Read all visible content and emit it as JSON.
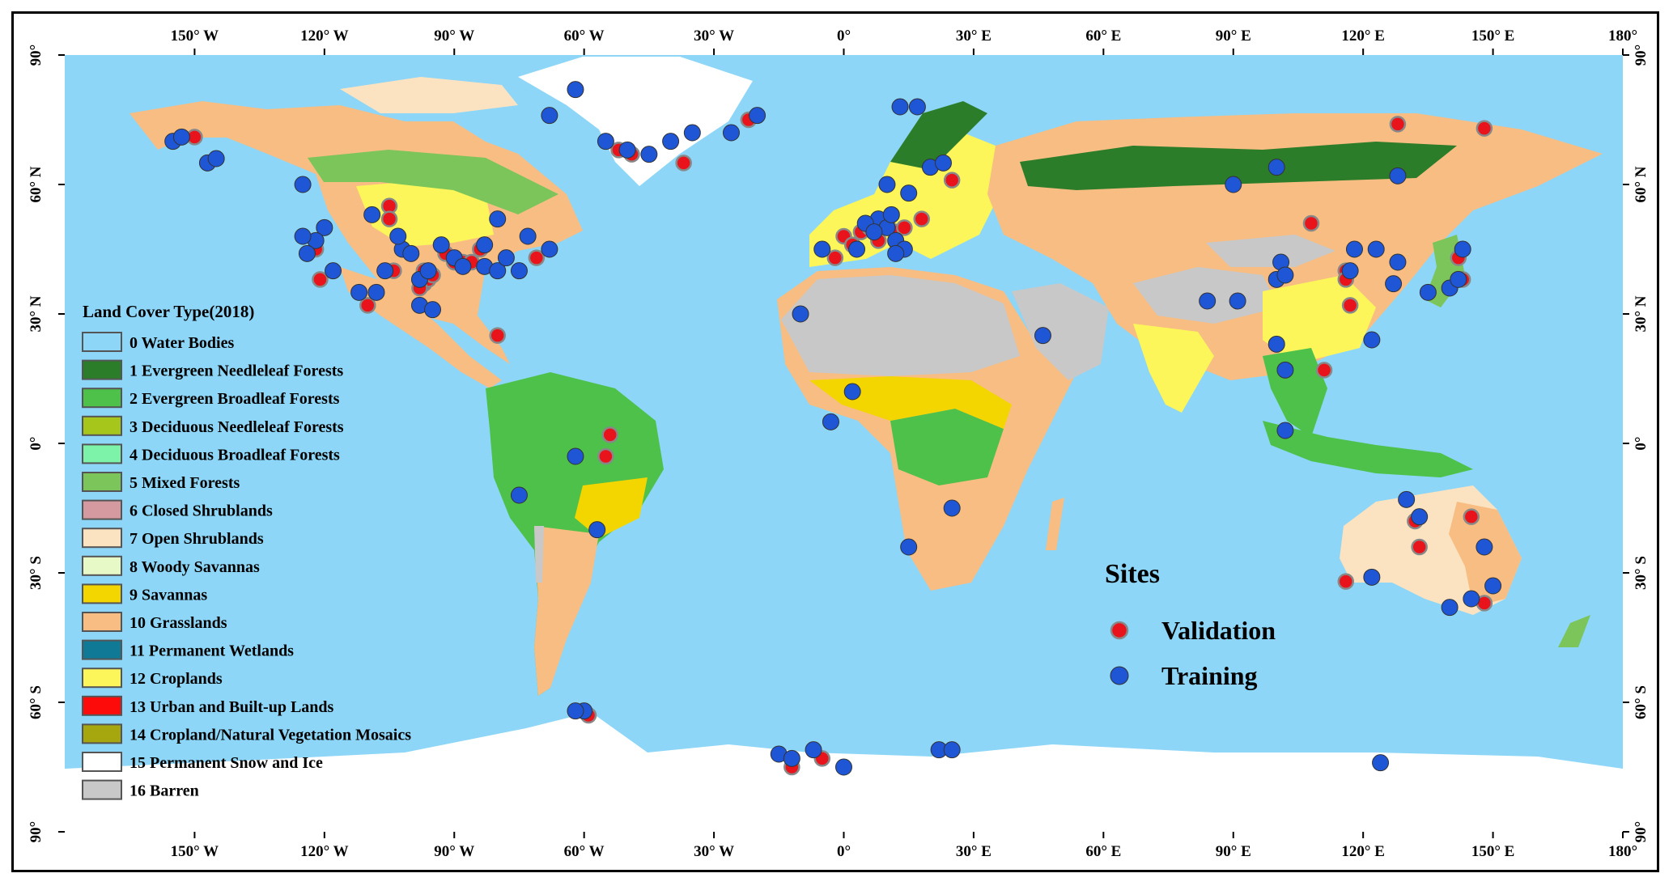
{
  "map": {
    "projection": "equirectangular",
    "lon_range": [
      -180,
      180
    ],
    "lat_range": [
      -90,
      90
    ],
    "colors": {
      "ocean": "#8dd6f7",
      "snow": "#ffffff",
      "barren": "#c8c8c8",
      "grassland": "#f8bd82",
      "open_shrub": "#fbe3c1",
      "ebf": "#4dc14a",
      "enf": "#2c7d2a",
      "savanna": "#f3d600",
      "cropland": "#fcf65a",
      "mixed": "#7cc55b"
    },
    "top_ticks": [
      "150° W",
      "120° W",
      "90° W",
      "60° W",
      "30° W",
      "0°",
      "30° E",
      "60° E",
      "90° E",
      "120° E",
      "150° E",
      "180°"
    ],
    "top_ticks_lon": [
      -150,
      -120,
      -90,
      -60,
      -30,
      0,
      30,
      60,
      90,
      120,
      150,
      180
    ],
    "bottom_ticks": [
      "150° W",
      "120° W",
      "90° W",
      "60° W",
      "30° W",
      "0°",
      "30° E",
      "60° E",
      "90° E",
      "120° E",
      "150° E",
      "180°"
    ],
    "left_ticks": [
      "90°",
      "60° N",
      "30° N",
      "0°",
      "30° S",
      "60° S",
      "90°"
    ],
    "right_ticks": [
      "90°",
      "60° N",
      "30° N",
      "0°",
      "30° S",
      "60° S",
      "90°"
    ],
    "lat_ticks": [
      90,
      60,
      30,
      0,
      -30,
      -60,
      -90
    ]
  },
  "legend": {
    "title": "Land Cover Type(2018)",
    "items": [
      {
        "label": "0 Water Bodies",
        "color": "#8dd6f7"
      },
      {
        "label": "1 Evergreen Needleleaf Forests",
        "color": "#2c7d2a"
      },
      {
        "label": "2 Evergreen Broadleaf Forests",
        "color": "#4dc14a"
      },
      {
        "label": "3 Deciduous Needleleaf Forests",
        "color": "#a6c61c"
      },
      {
        "label": "4 Deciduous Broadleaf Forests",
        "color": "#7df2a9"
      },
      {
        "label": "5 Mixed Forests",
        "color": "#7cc55b"
      },
      {
        "label": "6 Closed Shrublands",
        "color": "#d59aa0"
      },
      {
        "label": "7 Open Shrublands",
        "color": "#fbe3c1"
      },
      {
        "label": "8 Woody Savannas",
        "color": "#e6f9c6"
      },
      {
        "label": "9 Savannas",
        "color": "#f3d600"
      },
      {
        "label": "10 Grasslands",
        "color": "#f8bd82"
      },
      {
        "label": "11 Permanent Wetlands",
        "color": "#107a96"
      },
      {
        "label": "12 Croplands",
        "color": "#fcf65a"
      },
      {
        "label": "13 Urban and Built-up Lands",
        "color": "#fd0a0a"
      },
      {
        "label": "14 Cropland/Natural Vegetation Mosaics",
        "color": "#a6a60e"
      },
      {
        "label": "15 Permanent Snow and Ice",
        "color": "#ffffff"
      },
      {
        "label": "16 Barren",
        "color": "#c8c8c8"
      }
    ]
  },
  "sites": {
    "title": "Sites",
    "validation_label": "Validation",
    "training_label": "Training",
    "validation_color": "#e8131b",
    "training_color": "#1e56d6",
    "validation": [
      [
        -147,
        65
      ],
      [
        -150,
        71
      ],
      [
        -105,
        55
      ],
      [
        -104,
        40
      ],
      [
        -97,
        37
      ],
      [
        -96,
        38
      ],
      [
        -98,
        36
      ],
      [
        -95,
        39
      ],
      [
        -97,
        40
      ],
      [
        -92,
        44
      ],
      [
        -90,
        42
      ],
      [
        -88,
        42
      ],
      [
        -86,
        42
      ],
      [
        -84,
        45
      ],
      [
        -80,
        25
      ],
      [
        -71,
        43
      ],
      [
        -122,
        45
      ],
      [
        -121,
        38
      ],
      [
        -110,
        32
      ],
      [
        -105,
        52
      ],
      [
        -54,
        2
      ],
      [
        -55,
        -3
      ],
      [
        -49,
        67
      ],
      [
        -37,
        65
      ],
      [
        -22,
        75
      ],
      [
        -52,
        68
      ],
      [
        0,
        48
      ],
      [
        4,
        49
      ],
      [
        6,
        50
      ],
      [
        8,
        47
      ],
      [
        10,
        51
      ],
      [
        12,
        49
      ],
      [
        14,
        50
      ],
      [
        18,
        52
      ],
      [
        25,
        61
      ],
      [
        -2,
        43
      ],
      [
        2,
        46
      ],
      [
        108,
        51
      ],
      [
        116,
        40
      ],
      [
        116,
        38
      ],
      [
        117,
        32
      ],
      [
        111,
        17
      ],
      [
        142,
        43
      ],
      [
        143,
        38
      ],
      [
        148,
        73
      ],
      [
        128,
        74
      ],
      [
        145,
        -17
      ],
      [
        132,
        -18
      ],
      [
        133,
        -24
      ],
      [
        116,
        -32
      ],
      [
        148,
        -37
      ],
      [
        -59,
        -63
      ],
      [
        -12,
        -75
      ],
      [
        -5,
        -73
      ]
    ],
    "training": [
      [
        -155,
        70
      ],
      [
        -153,
        71
      ],
      [
        -147,
        65
      ],
      [
        -145,
        66
      ],
      [
        -125,
        60
      ],
      [
        -120,
        50
      ],
      [
        -122,
        47
      ],
      [
        -124,
        44
      ],
      [
        -125,
        48
      ],
      [
        -118,
        40
      ],
      [
        -112,
        35
      ],
      [
        -108,
        35
      ],
      [
        -106,
        40
      ],
      [
        -102,
        45
      ],
      [
        -100,
        44
      ],
      [
        -98,
        38
      ],
      [
        -96,
        40
      ],
      [
        -93,
        46
      ],
      [
        -90,
        43
      ],
      [
        -88,
        41
      ],
      [
        -83,
        46
      ],
      [
        -83,
        41
      ],
      [
        -80,
        40
      ],
      [
        -78,
        43
      ],
      [
        -75,
        40
      ],
      [
        -73,
        48
      ],
      [
        -68,
        45
      ],
      [
        -80,
        52
      ],
      [
        -109,
        53
      ],
      [
        -103,
        48
      ],
      [
        -98,
        32
      ],
      [
        -95,
        31
      ],
      [
        -68,
        76
      ],
      [
        -62,
        82
      ],
      [
        -55,
        70
      ],
      [
        -50,
        68
      ],
      [
        -45,
        67
      ],
      [
        -40,
        70
      ],
      [
        -35,
        72
      ],
      [
        -26,
        72
      ],
      [
        -20,
        76
      ],
      [
        -62,
        -3
      ],
      [
        -57,
        -20
      ],
      [
        -75,
        -12
      ],
      [
        -60,
        -62
      ],
      [
        -62,
        -62
      ],
      [
        10,
        60
      ],
      [
        15,
        58
      ],
      [
        20,
        64
      ],
      [
        23,
        65
      ],
      [
        13,
        78
      ],
      [
        17,
        78
      ],
      [
        8,
        52
      ],
      [
        10,
        50
      ],
      [
        12,
        47
      ],
      [
        14,
        45
      ],
      [
        5,
        51
      ],
      [
        7,
        49
      ],
      [
        11,
        53
      ],
      [
        12,
        44
      ],
      [
        -5,
        45
      ],
      [
        3,
        45
      ],
      [
        -10,
        30
      ],
      [
        -3,
        5
      ],
      [
        2,
        12
      ],
      [
        25,
        -15
      ],
      [
        15,
        -24
      ],
      [
        46,
        25
      ],
      [
        90,
        60
      ],
      [
        100,
        64
      ],
      [
        100,
        38
      ],
      [
        101,
        42
      ],
      [
        102,
        39
      ],
      [
        84,
        33
      ],
      [
        91,
        33
      ],
      [
        100,
        23
      ],
      [
        102,
        17
      ],
      [
        102,
        3
      ],
      [
        117,
        40
      ],
      [
        118,
        45
      ],
      [
        123,
        45
      ],
      [
        122,
        24
      ],
      [
        127,
        37
      ],
      [
        128,
        42
      ],
      [
        135,
        35
      ],
      [
        140,
        36
      ],
      [
        142,
        38
      ],
      [
        143,
        45
      ],
      [
        128,
        62
      ],
      [
        130,
        -13
      ],
      [
        133,
        -17
      ],
      [
        148,
        -24
      ],
      [
        150,
        -33
      ],
      [
        145,
        -36
      ],
      [
        122,
        -31
      ],
      [
        140,
        -38
      ],
      [
        -15,
        -72
      ],
      [
        -12,
        -73
      ],
      [
        -7,
        -71
      ],
      [
        0,
        -75
      ],
      [
        22,
        -71
      ],
      [
        25,
        -71
      ],
      [
        124,
        -74
      ]
    ]
  }
}
